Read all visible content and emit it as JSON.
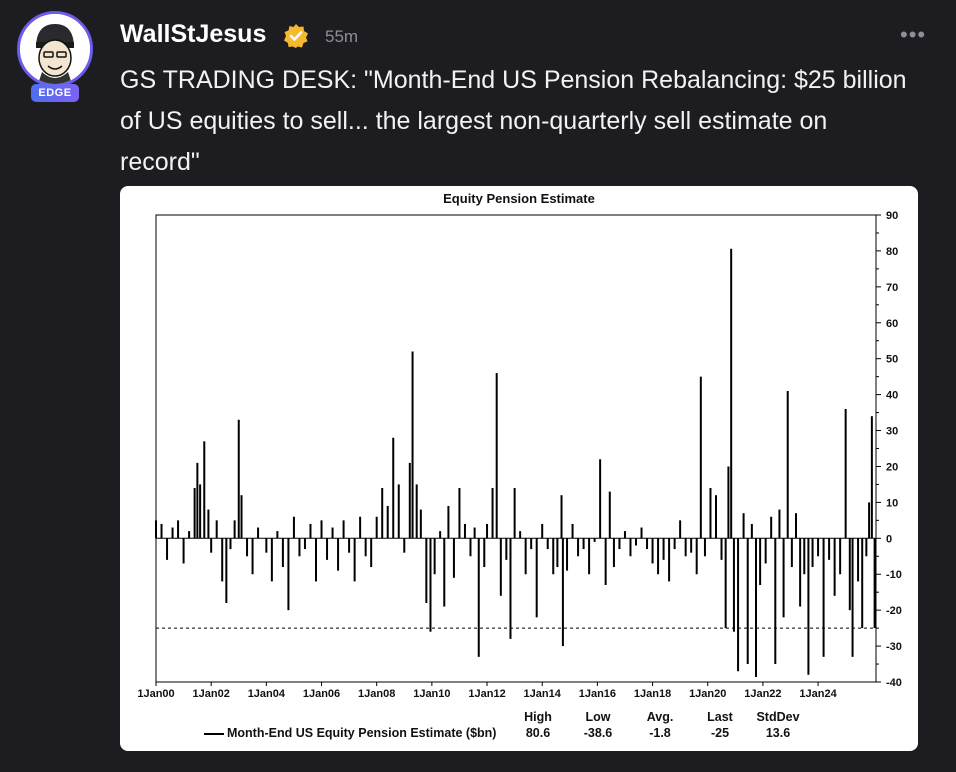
{
  "post": {
    "username": "WallStJesus",
    "badge": "EDGE",
    "time_ago": "55m",
    "more_label": "•••",
    "text": "GS TRADING DESK: \"Month-End US Pension Rebalancing: $25 billion of US equities to sell... the largest non-quarterly sell estimate on record\"",
    "verified_color": "#f5b82e",
    "accent_color": "#6b5cf0"
  },
  "chart_data": {
    "type": "bar",
    "title": "Equity Pension Estimate",
    "xlabel": "",
    "ylabel": "",
    "ylim": [
      -40,
      90
    ],
    "y_ticks": [
      90,
      80,
      70,
      60,
      50,
      40,
      30,
      20,
      10,
      0,
      -10,
      -20,
      -30,
      -40
    ],
    "x_tick_labels": [
      "1Jan00",
      "1Jan02",
      "1Jan04",
      "1Jan06",
      "1Jan08",
      "1Jan10",
      "1Jan12",
      "1Jan14",
      "1Jan16",
      "1Jan18",
      "1Jan20",
      "1Jan22",
      "1Jan24"
    ],
    "x_range_years": [
      2000,
      2026.1
    ],
    "reference_line": -25,
    "series_name": "Month-End US Equity Pension Estimate ($bn)",
    "stats": {
      "headers": [
        "High",
        "Low",
        "Avg.",
        "Last",
        "StdDev"
      ],
      "values": [
        "80.6",
        "-38.6",
        "-1.8",
        "-25",
        "13.6"
      ]
    },
    "points": [
      [
        2000.0,
        5
      ],
      [
        2000.2,
        4
      ],
      [
        2000.4,
        -6
      ],
      [
        2000.6,
        3
      ],
      [
        2000.8,
        5
      ],
      [
        2001.0,
        -7
      ],
      [
        2001.2,
        2
      ],
      [
        2001.4,
        14
      ],
      [
        2001.5,
        21
      ],
      [
        2001.6,
        15
      ],
      [
        2001.75,
        27
      ],
      [
        2001.9,
        8
      ],
      [
        2002.0,
        -4
      ],
      [
        2002.2,
        5
      ],
      [
        2002.4,
        -12
      ],
      [
        2002.55,
        -18
      ],
      [
        2002.7,
        -3
      ],
      [
        2002.85,
        5
      ],
      [
        2003.0,
        33
      ],
      [
        2003.1,
        12
      ],
      [
        2003.3,
        -5
      ],
      [
        2003.5,
        -10
      ],
      [
        2003.7,
        3
      ],
      [
        2004.0,
        -4
      ],
      [
        2004.2,
        -12
      ],
      [
        2004.4,
        2
      ],
      [
        2004.6,
        -8
      ],
      [
        2004.8,
        -20
      ],
      [
        2005.0,
        6
      ],
      [
        2005.2,
        -5
      ],
      [
        2005.4,
        -3
      ],
      [
        2005.6,
        4
      ],
      [
        2005.8,
        -12
      ],
      [
        2006.0,
        5
      ],
      [
        2006.2,
        -6
      ],
      [
        2006.4,
        3
      ],
      [
        2006.6,
        -9
      ],
      [
        2006.8,
        5
      ],
      [
        2007.0,
        -4
      ],
      [
        2007.2,
        -12
      ],
      [
        2007.4,
        6
      ],
      [
        2007.6,
        -5
      ],
      [
        2007.8,
        -8
      ],
      [
        2008.0,
        6
      ],
      [
        2008.2,
        14
      ],
      [
        2008.4,
        9
      ],
      [
        2008.6,
        28
      ],
      [
        2008.8,
        15
      ],
      [
        2009.0,
        -4
      ],
      [
        2009.2,
        21
      ],
      [
        2009.3,
        52
      ],
      [
        2009.45,
        15
      ],
      [
        2009.6,
        8
      ],
      [
        2009.8,
        -18
      ],
      [
        2009.95,
        -26
      ],
      [
        2010.1,
        -10
      ],
      [
        2010.3,
        2
      ],
      [
        2010.45,
        -19
      ],
      [
        2010.6,
        9
      ],
      [
        2010.8,
        -11
      ],
      [
        2011.0,
        14
      ],
      [
        2011.2,
        4
      ],
      [
        2011.4,
        -5
      ],
      [
        2011.55,
        3
      ],
      [
        2011.7,
        -33
      ],
      [
        2011.9,
        -8
      ],
      [
        2012.0,
        4
      ],
      [
        2012.2,
        14
      ],
      [
        2012.35,
        46
      ],
      [
        2012.5,
        -16
      ],
      [
        2012.7,
        -6
      ],
      [
        2012.85,
        -28
      ],
      [
        2013.0,
        14
      ],
      [
        2013.2,
        2
      ],
      [
        2013.4,
        -10
      ],
      [
        2013.6,
        -3
      ],
      [
        2013.8,
        -22
      ],
      [
        2014.0,
        4
      ],
      [
        2014.2,
        -3
      ],
      [
        2014.4,
        -10
      ],
      [
        2014.55,
        -8
      ],
      [
        2014.7,
        12
      ],
      [
        2014.75,
        -30
      ],
      [
        2014.9,
        -9
      ],
      [
        2015.1,
        4
      ],
      [
        2015.3,
        -5
      ],
      [
        2015.5,
        -3
      ],
      [
        2015.7,
        -10
      ],
      [
        2015.9,
        -1
      ],
      [
        2016.1,
        22
      ],
      [
        2016.3,
        -13
      ],
      [
        2016.45,
        13
      ],
      [
        2016.6,
        -8
      ],
      [
        2016.8,
        -3
      ],
      [
        2017.0,
        2
      ],
      [
        2017.2,
        -5
      ],
      [
        2017.4,
        -2
      ],
      [
        2017.6,
        3
      ],
      [
        2017.8,
        -3
      ],
      [
        2018.0,
        -7
      ],
      [
        2018.2,
        -10
      ],
      [
        2018.4,
        -6
      ],
      [
        2018.6,
        -12
      ],
      [
        2018.8,
        -3
      ],
      [
        2019.0,
        5
      ],
      [
        2019.2,
        -5
      ],
      [
        2019.4,
        -4
      ],
      [
        2019.6,
        -10
      ],
      [
        2019.75,
        45
      ],
      [
        2019.9,
        -5
      ],
      [
        2020.1,
        14
      ],
      [
        2020.3,
        12
      ],
      [
        2020.5,
        -6
      ],
      [
        2020.65,
        -25
      ],
      [
        2020.75,
        20
      ],
      [
        2020.85,
        80.6
      ],
      [
        2020.95,
        -26
      ],
      [
        2021.1,
        -37
      ],
      [
        2021.3,
        7
      ],
      [
        2021.45,
        -35
      ],
      [
        2021.6,
        4
      ],
      [
        2021.75,
        -38.6
      ],
      [
        2021.9,
        -13
      ],
      [
        2022.1,
        -7
      ],
      [
        2022.3,
        6
      ],
      [
        2022.45,
        -35
      ],
      [
        2022.6,
        8
      ],
      [
        2022.75,
        -22
      ],
      [
        2022.9,
        41
      ],
      [
        2023.05,
        -8
      ],
      [
        2023.2,
        7
      ],
      [
        2023.35,
        -19
      ],
      [
        2023.5,
        -10
      ],
      [
        2023.65,
        -38
      ],
      [
        2023.8,
        -8
      ],
      [
        2024.0,
        -5
      ],
      [
        2024.2,
        -33
      ],
      [
        2024.4,
        -6
      ],
      [
        2024.6,
        -16
      ],
      [
        2024.8,
        -10
      ],
      [
        2025.0,
        36
      ],
      [
        2025.15,
        -20
      ],
      [
        2025.25,
        -33
      ],
      [
        2025.45,
        -12
      ],
      [
        2025.6,
        -25
      ],
      [
        2025.75,
        -5
      ],
      [
        2025.85,
        10
      ],
      [
        2025.95,
        34
      ],
      [
        2026.05,
        -25
      ]
    ]
  }
}
